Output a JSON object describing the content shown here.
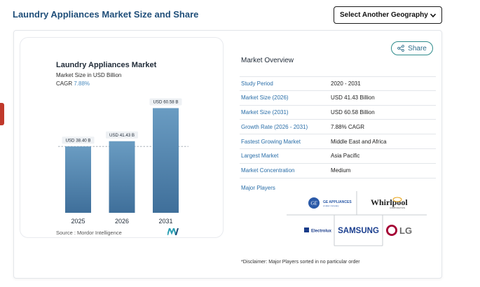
{
  "header": {
    "title": "Laundry Appliances Market Size and Share",
    "geo_select_label": "Select Another Geography"
  },
  "chart_panel": {
    "title": "Laundry Appliances Market",
    "subtitle": "Market Size in USD Billion",
    "cagr_label": "CAGR",
    "cagr_value": "7.88%",
    "source": "Source : Mordor Intelligence"
  },
  "chart_data": {
    "type": "bar",
    "categories": [
      "2025",
      "2026",
      "2031"
    ],
    "values": [
      38.4,
      41.43,
      60.58
    ],
    "data_labels": [
      "USD 38.40 B",
      "USD 41.43 B",
      "USD 60.58 B"
    ],
    "title": "Laundry Appliances Market",
    "ylabel": "Market Size in USD Billion",
    "ylim": [
      0,
      64
    ],
    "colors": {
      "bar_top": "#6a9cc2",
      "bar_bottom": "#3f6f9a"
    }
  },
  "share": {
    "label": "Share"
  },
  "overview": {
    "title": "Market Overview",
    "rows": [
      {
        "key": "Study Period",
        "value": "2020 - 2031"
      },
      {
        "key": "Market Size (2026)",
        "value": "USD 41.43 Billion"
      },
      {
        "key": "Market Size (2031)",
        "value": "USD 60.58 Billion"
      },
      {
        "key": "Growth Rate (2026 - 2031)",
        "value": "7.88% CAGR"
      },
      {
        "key": "Fastest Growing Market",
        "value": "Middle East and Africa"
      },
      {
        "key": "Largest Market",
        "value": "Asia Pacific"
      },
      {
        "key": "Market Concentration",
        "value": "Medium"
      }
    ],
    "players_label": "Major Players",
    "players": [
      "GE APPLIANCES",
      "Whirlpool",
      "Electrolux",
      "SAMSUNG",
      "LG"
    ],
    "ge_sub": "a Haier company",
    "whirlpool_sub": "CORPORATION",
    "disclaimer": "*Disclaimer: Major Players sorted in no particular order"
  },
  "colors": {
    "title_blue": "#1f4e79",
    "link_blue": "#2a6ea8",
    "teal": "#2e8b8b",
    "red_tab": "#c0392b"
  },
  "icons": [
    "chevron-down-icon",
    "share-icon"
  ]
}
